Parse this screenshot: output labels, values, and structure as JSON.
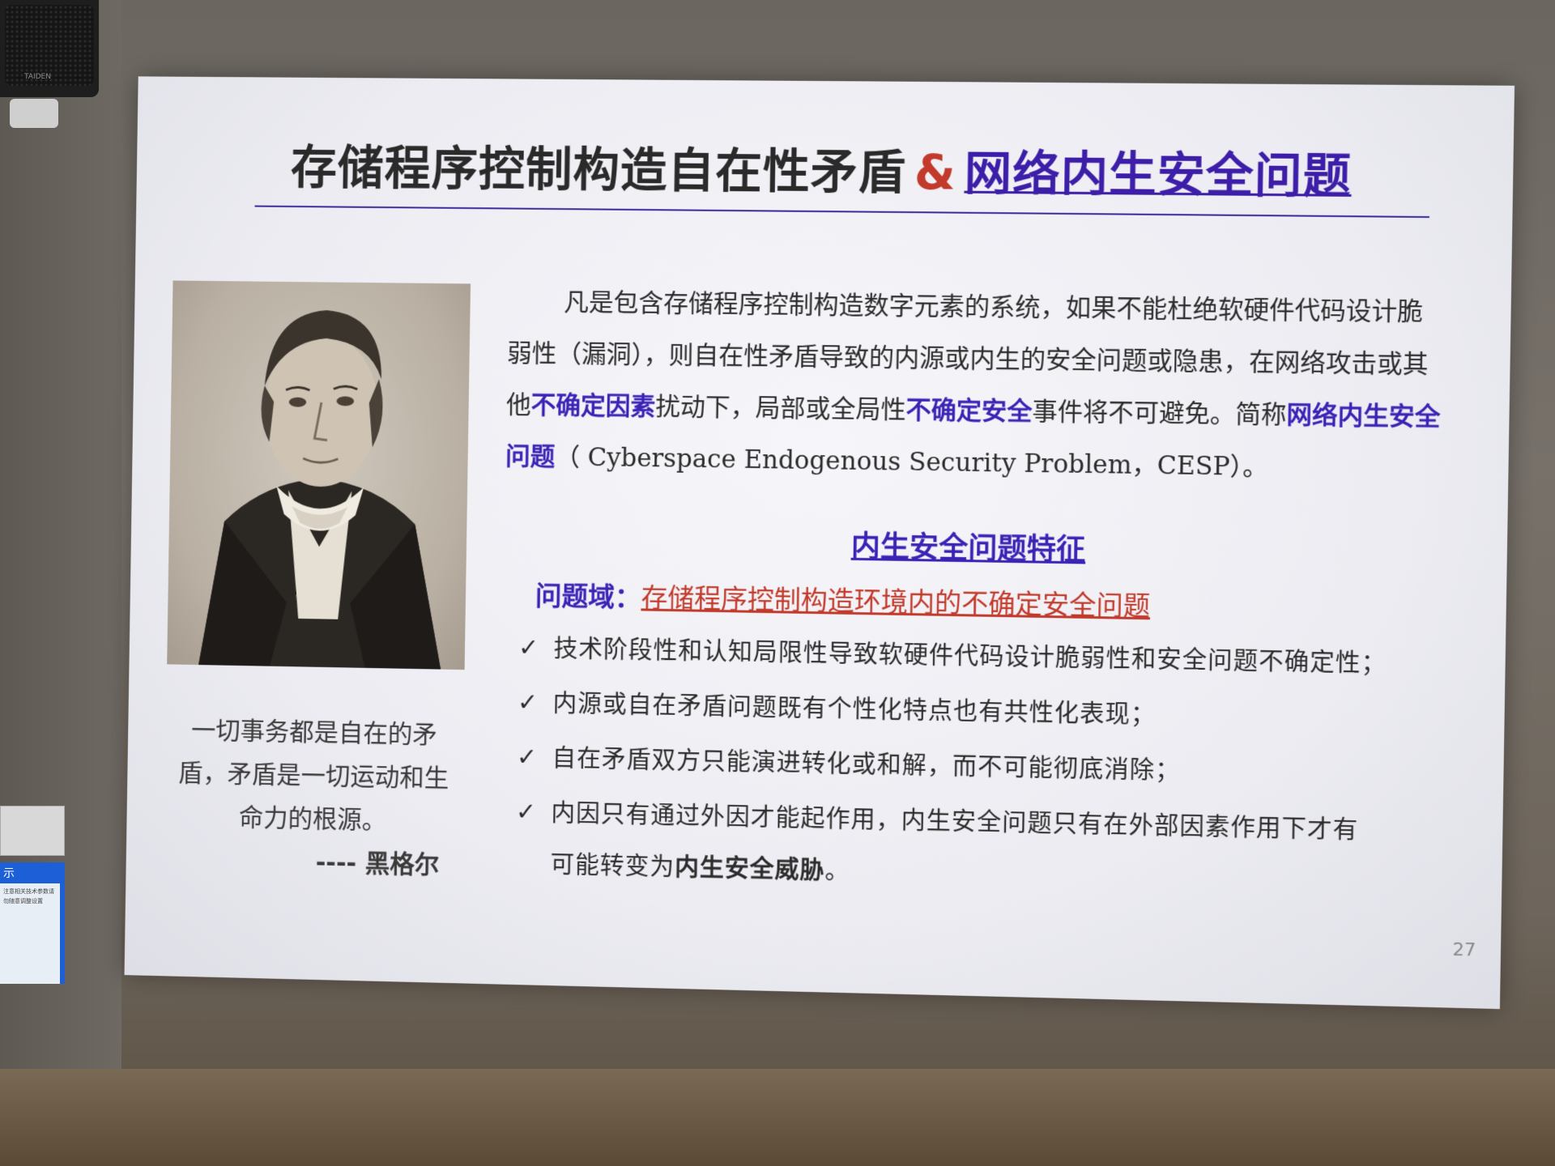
{
  "room": {
    "speaker_brand": "TAIDEN",
    "poster_title": "示",
    "poster_text": "注意相关技术参数请勿随意调整设置"
  },
  "slide": {
    "title_part1": "存储程序控制构造自在性矛盾",
    "title_amp": "&",
    "title_part2": "网络内生安全问题",
    "paragraph": {
      "p1": "凡是包含存储程序控制构造数字元素的系统，如果不能杜绝软硬件代码设计脆弱性（漏洞），则自在性矛盾导致的内源或内生的安全问题或隐患，在网络攻击或其他",
      "hl1": "不确定因素",
      "p2": "扰动下，局部或全局性",
      "hl2": "不确定安全",
      "p3": "事件将不可避免。简称",
      "hl3": "网络内生安全问题",
      "p4": "（ Cyberspace Endogenous Security  Problem，CESP）。"
    },
    "section_heading": "内生安全问题特征",
    "problem_domain_label": "问题域：",
    "problem_domain_value": "存储程序控制构造环境内的不确定安全问题",
    "check_glyph": "✓",
    "features": [
      "技术阶段性和认知局限性导致软硬件代码设计脆弱性和安全问题不确定性；",
      "内源或自在矛盾问题既有个性化特点也有共性化表现；",
      "自在矛盾双方只能演进转化或和解，而不可能彻底消除；",
      "内因只有通过外因才能起作用，内生安全问题只有在外部因素作用下才有"
    ],
    "feature4_cont": "可能转变为",
    "feature4_bold": "内生安全威胁",
    "feature4_end": "。",
    "quote_text": "一切事务都是自在的矛盾，矛盾是一切运动和生命力的根源。",
    "quote_author": "---- 黑格尔",
    "page_number": "27"
  }
}
